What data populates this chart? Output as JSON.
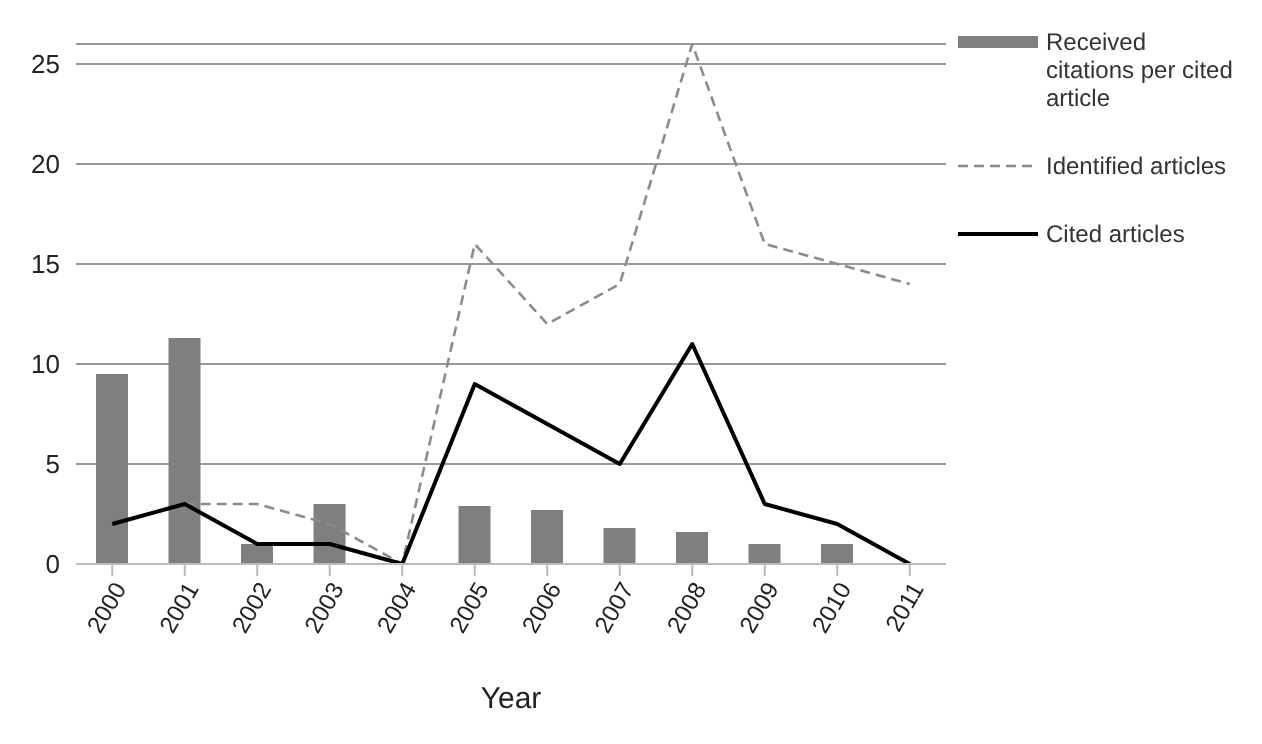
{
  "chart_data": {
    "type": "bar",
    "xlabel": "Year",
    "categories": [
      "2000",
      "2001",
      "2002",
      "2003",
      "2004",
      "2005",
      "2006",
      "2007",
      "2008",
      "2009",
      "2010",
      "2011"
    ],
    "series": [
      {
        "name": "Received citations per cited article",
        "color": "#7f7f7f",
        "values": [
          9.5,
          11.3,
          1,
          3,
          0,
          2.9,
          2.7,
          1.8,
          1.6,
          1,
          1,
          0
        ]
      },
      {
        "name": "Identified articles",
        "type": "line",
        "line_style": "dashed",
        "color": "#8c8c8c",
        "values": [
          null,
          3,
          3,
          2,
          0,
          16,
          12,
          14,
          26,
          16,
          15,
          14
        ]
      },
      {
        "name": "Cited articles",
        "type": "line",
        "line_style": "solid",
        "color": "#000000",
        "values": [
          2,
          3,
          1,
          1,
          0,
          9,
          7,
          5,
          11,
          3,
          2,
          0
        ]
      }
    ],
    "ylim": [
      0,
      26
    ],
    "yticks": [
      0,
      5,
      10,
      15,
      20,
      25
    ],
    "grid": "y",
    "legend": "top right",
    "marker": "none"
  }
}
